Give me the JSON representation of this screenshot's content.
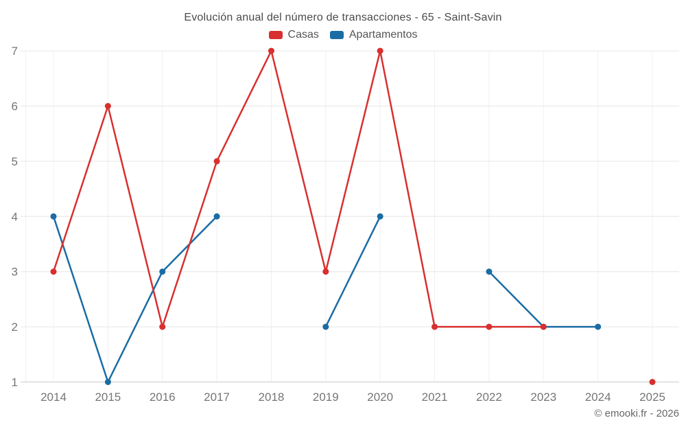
{
  "title": "Evolución anual del número de transacciones - 65 - Saint-Savin",
  "footer": "© emooki.fr - 2026",
  "legend": {
    "items": [
      {
        "label": "Casas",
        "color": "#d7302f"
      },
      {
        "label": "Apartamentos",
        "color": "#1a6ca4"
      }
    ]
  },
  "chart_data": {
    "type": "line",
    "title": "Evolución anual del número de transacciones - 65 - Saint-Savin",
    "xlabel": "",
    "ylabel": "",
    "x": [
      2014,
      2015,
      2016,
      2017,
      2018,
      2019,
      2020,
      2021,
      2022,
      2023,
      2024,
      2025
    ],
    "series": [
      {
        "name": "Apartamentos",
        "color": "#1a6ca4",
        "values": [
          4,
          1,
          3,
          4,
          null,
          2,
          4,
          null,
          3,
          2,
          2,
          null
        ]
      },
      {
        "name": "Casas",
        "color": "#d7302f",
        "values": [
          3,
          6,
          2,
          5,
          7,
          3,
          7,
          2,
          2,
          2,
          null,
          1
        ]
      }
    ],
    "ylim": [
      1,
      7
    ],
    "yticks": [
      1,
      2,
      3,
      4,
      5,
      6,
      7
    ],
    "grid": true,
    "legend_position": "top",
    "marker": "circle",
    "annotation": "© emooki.fr - 2026"
  },
  "style": {
    "grid_color_h": "#e6e6e6",
    "grid_color_v": "#f0f0f0",
    "axis_color": "#cccccc",
    "tick_label_color": "#757575"
  }
}
